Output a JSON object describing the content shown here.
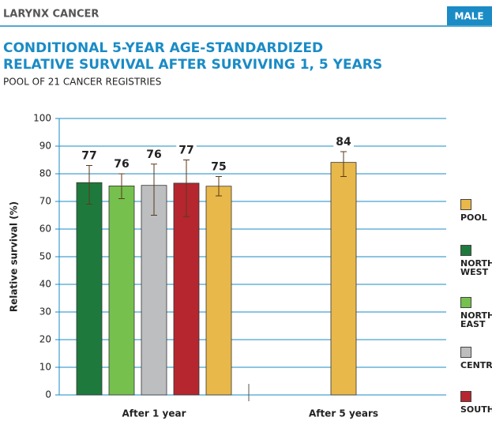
{
  "header": "LARYNX CANCER",
  "badge": "MALE",
  "chart_data": {
    "type": "bar",
    "title": [
      "CONDITIONAL 5-YEAR AGE-STANDARDIZED",
      "RELATIVE SURVIVAL AFTER SURVIVING 1, 5 YEARS"
    ],
    "subtitle": "POOL OF 21 CANCER REGISTRIES",
    "ylabel": "Relative survival (%)",
    "categories": [
      "After 1 year",
      "After 5 years"
    ],
    "series": [
      {
        "name": "NORTH WEST",
        "color": "#1e7a3c",
        "values": [
          76.8,
          null
        ],
        "value_labels": [
          "77",
          null
        ],
        "ci_low": [
          69,
          null
        ],
        "ci_high": [
          83,
          null
        ]
      },
      {
        "name": "NORTH EAST",
        "color": "#76c04e",
        "values": [
          75.6,
          null
        ],
        "value_labels": [
          "76",
          null
        ],
        "ci_low": [
          71,
          null
        ],
        "ci_high": [
          80,
          null
        ]
      },
      {
        "name": "CENTRE",
        "color": "#bcbec0",
        "values": [
          75.8,
          null
        ],
        "value_labels": [
          "76",
          null
        ],
        "ci_low": [
          65,
          null
        ],
        "ci_high": [
          83.5,
          null
        ]
      },
      {
        "name": "SOUTH",
        "color": "#b5262e",
        "values": [
          76.6,
          null
        ],
        "value_labels": [
          "77",
          null
        ],
        "ci_low": [
          64.5,
          null
        ],
        "ci_high": [
          85,
          null
        ]
      },
      {
        "name": "POOL",
        "color": "#e8b84a",
        "values": [
          75.5,
          84.1
        ],
        "value_labels": [
          "75",
          "84"
        ],
        "ci_low": [
          72,
          79
        ],
        "ci_high": [
          79,
          88
        ]
      }
    ],
    "ylim": [
      0,
      100
    ],
    "yticks": [
      0,
      10,
      20,
      30,
      40,
      50,
      60,
      70,
      80,
      90,
      100
    ],
    "grid": true
  }
}
